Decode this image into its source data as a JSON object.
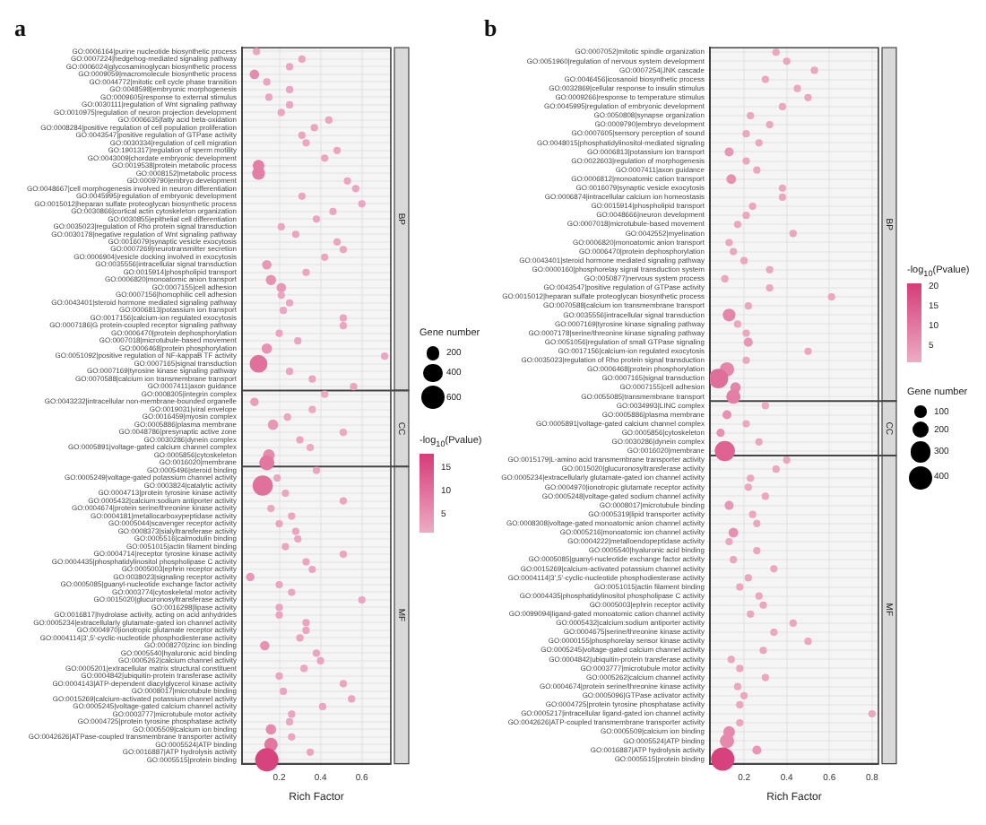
{
  "chart_data": [
    {
      "type": "bubble",
      "orientation": "horizontal",
      "title": "a",
      "xlabel": "Rich Factor",
      "grid": true,
      "xlim": [
        0.02,
        0.74
      ],
      "xticks": [
        0.2,
        0.4,
        0.6
      ],
      "legend_title": "Gene number",
      "clabel": "-log$_{10}$(Pvalue)",
      "clim": [
        1,
        18
      ],
      "cticks": [
        5,
        10,
        15
      ],
      "size_legend": [
        200,
        400,
        600
      ],
      "categories": [
        "GO:0006164|purine nucleotide biosynthetic process",
        "GO:0007224|hedgehog-mediated signaling pathway",
        "GO:0006024|glycosaminoglycan biosynthetic process",
        "GO:0009059|macromolecule biosynthetic process",
        "GO:0044772|mitotic cell cycle phase transition",
        "GO:0048598|embryonic morphogenesis",
        "GO:0009605|response to external stimulus",
        "GO:0030111|regulation of Wnt signaling pathway",
        "GO:0010975|regulation of neuron projection development",
        "GO:0006635|fatty acid beta-oxidation",
        "GO:0008284|positive regulation of cell population proliferation",
        "GO:0043547|positive regulation of GTPase activity",
        "GO:0030334|regulation of cell migration",
        "GO:1901317|regulation of sperm motility",
        "GO:0043009|chordate embryonic development",
        "GO:0019538|protein metabolic process",
        "GO:0008152|metabolic process",
        "GO:0009790|embryo development",
        "GO:0048667|cell morphogenesis involved in neuron differentiation",
        "GO:0045995|regulation of embryonic development",
        "GO:0015012|heparan sulfate proteoglycan biosynthetic process",
        "GO:0030866|cortical actin cytoskeleton organization",
        "GO:0030855|epithelial cell differentiation",
        "GO:0035023|regulation of Rho protein signal transduction",
        "GO:0030178|negative regulation of Wnt signaling pathway",
        "GO:0016079|synaptic vesicle exocytosis",
        "GO:0007269|neurotransmitter secretion",
        "GO:0006904|vesicle docking involved in exocytosis",
        "GO:0035556|intracellular signal transduction",
        "GO:0015914|phospholipid transport",
        "GO:0006820|monoatomic anion transport",
        "GO:0007155|cell adhesion",
        "GO:0007156|homophilic cell adhesion",
        "GO:0043401|steroid hormone mediated signaling pathway",
        "GO:0006813|potassium ion transport",
        "GO:0017156|calcium-ion regulated exocytosis",
        "GO:0007186|G protein-coupled receptor signaling pathway",
        "GO:0006470|protein dephosphorylation",
        "GO:0007018|microtubule-based movement",
        "GO:0006468|protein phosphorylation",
        "GO:0051092|positive regulation of NF-kappaB TF activity",
        "GO:0007165|signal transduction",
        "GO:0007169|tyrosine kinase signaling pathway",
        "GO:0070588|calcium ion transmembrane transport",
        "GO:0007411|axon guidance",
        "GO:0008305|integrin complex",
        "GO:0043232|intracellular non-membrane-bounded organelle",
        "GO:0019031|viral envelope",
        "GO:0016459|myosin complex",
        "GO:0005886|plasma membrane",
        "GO:0048786|presynaptic active zone",
        "GO:0030286|dynein complex",
        "GO:0005891|voltage-gated calcium channel complex",
        "GO:0005856|cytoskeleton",
        "GO:0016020|membrane",
        "GO:0005496|steroid binding",
        "GO:0005249|voltage-gated potassium channel activity",
        "GO:0003824|catalytic activity",
        "GO:0004713|protein tyrosine kinase activity",
        "GO:0005432|calcium:sodium antiporter activity",
        "GO:0004674|protein serine/threonine kinase activity",
        "GO:0004181|metallocarboxypeptidase activity",
        "GO:0005044|scavenger receptor activity",
        "GO:0008373|sialyltransferase activity",
        "GO:0005516|calmodulin binding",
        "GO:0051015|actin filament binding",
        "GO:0004714|receptor tyrosine kinase activity",
        "GO:0004435|phosphatidylinositol phospholipase C activity",
        "GO:0005003|ephrin receptor activity",
        "GO:0038023|signaling receptor activity",
        "GO:0005085|guanyl-nucleotide exchange factor activity",
        "GO:0003774|cytoskeletal motor activity",
        "GO:0015020|glucuronosyltransferase activity",
        "GO:0016298|lipase activity",
        "GO:0016817|hydrolase activity, acting on acid anhydrides",
        "GO:0005234|extracellularly glutamate-gated ion channel activity",
        "GO:0004970|ionotropic glutamate receptor activity",
        "GO:0004114|3',5'-cyclic-nucleotide phosphodiesterase activity",
        "GO:0008270|zinc ion binding",
        "GO:0005540|hyaluronic acid binding",
        "GO:0005262|calcium channel activity",
        "GO:0005201|extracellular matrix structural constituent",
        "GO:0004842|ubiquitin-protein transferase activity",
        "GO:0004143|ATP-dependent diacylglycerol kinase activity",
        "GO:0008017|microtubule binding",
        "GO:0015269|calcium-activated potassium channel activity",
        "GO:0005245|voltage-gated calcium channel activity",
        "GO:0003777|microtubule motor activity",
        "GO:0004725|protein tyrosine phosphatase activity",
        "GO:0005509|calcium ion binding",
        "GO:0042626|ATPase-coupled transmembrane transporter activity",
        "GO:0005524|ATP binding",
        "GO:0016887|ATP hydrolysis activity",
        "GO:0005515|protein binding"
      ],
      "values": [
        0.09,
        0.31,
        0.25,
        0.08,
        0.14,
        0.25,
        0.15,
        0.25,
        0.21,
        0.44,
        0.37,
        0.31,
        0.33,
        0.48,
        0.42,
        0.1,
        0.1,
        0.53,
        0.57,
        0.31,
        0.6,
        0.46,
        0.38,
        0.21,
        0.28,
        0.48,
        0.51,
        0.42,
        0.14,
        0.33,
        0.16,
        0.21,
        0.21,
        0.25,
        0.22,
        0.51,
        0.51,
        0.2,
        0.29,
        0.14,
        0.71,
        0.1,
        0.25,
        0.36,
        0.56,
        0.42,
        0.08,
        0.36,
        0.24,
        0.17,
        0.51,
        0.3,
        0.35,
        0.15,
        0.14,
        0.38,
        0.19,
        0.12,
        0.23,
        0.51,
        0.16,
        0.26,
        0.2,
        0.28,
        0.29,
        0.23,
        0.51,
        0.33,
        0.36,
        0.06,
        0.2,
        0.26,
        0.6,
        0.2,
        0.2,
        0.33,
        0.33,
        0.3,
        0.13,
        0.38,
        0.4,
        0.32,
        0.2,
        0.51,
        0.22,
        0.55,
        0.41,
        0.26,
        0.25,
        0.16,
        0.26,
        0.16,
        0.35,
        0.14
      ],
      "sizes": [
        60,
        60,
        60,
        100,
        60,
        60,
        60,
        60,
        60,
        60,
        60,
        60,
        60,
        60,
        60,
        150,
        180,
        60,
        60,
        60,
        60,
        60,
        60,
        60,
        60,
        60,
        60,
        60,
        100,
        60,
        120,
        100,
        60,
        60,
        60,
        60,
        60,
        60,
        60,
        120,
        60,
        350,
        60,
        60,
        60,
        60,
        80,
        60,
        60,
        120,
        60,
        60,
        60,
        150,
        250,
        60,
        60,
        450,
        60,
        60,
        60,
        60,
        60,
        60,
        60,
        60,
        60,
        60,
        60,
        80,
        60,
        60,
        60,
        60,
        60,
        60,
        60,
        60,
        100,
        60,
        60,
        60,
        60,
        60,
        60,
        60,
        60,
        60,
        60,
        120,
        60,
        200,
        60,
        600
      ],
      "cvalues": [
        2,
        2,
        2,
        6,
        2,
        2,
        2,
        2,
        2,
        2,
        2,
        2,
        2,
        2,
        2,
        8,
        8,
        2,
        2,
        2,
        2,
        2,
        2,
        2,
        2,
        2,
        2,
        2,
        4,
        2,
        5,
        4,
        2,
        2,
        2,
        2,
        2,
        2,
        2,
        5,
        2,
        10,
        2,
        2,
        2,
        1.5,
        3,
        1.5,
        2,
        4,
        1.5,
        2,
        1.5,
        6,
        9,
        2,
        2,
        10,
        2,
        2,
        2,
        2,
        2,
        2,
        2,
        2,
        2,
        2,
        2,
        4,
        2,
        2,
        2,
        2,
        2,
        2,
        2,
        2,
        5,
        2,
        2,
        2,
        2,
        2,
        2,
        2,
        2,
        2,
        2,
        6,
        2,
        9,
        2,
        17
      ],
      "bands": [
        {
          "axis": "y",
          "from": "GO:0006164|purine nucleotide biosynthetic process",
          "to": "GO:0007411|axon guidance",
          "label": "BP"
        },
        {
          "axis": "y",
          "from": "GO:0008305|integrin complex",
          "to": "GO:0016020|membrane",
          "label": "CC"
        },
        {
          "axis": "y",
          "from": "GO:0005496|steroid binding",
          "to": "GO:0005515|protein binding",
          "label": "MF"
        }
      ]
    },
    {
      "type": "bubble",
      "orientation": "horizontal",
      "title": "b",
      "xlabel": "Rich Factor",
      "grid": true,
      "xlim": [
        0.04,
        0.83
      ],
      "xticks": [
        0.2,
        0.4,
        0.6,
        0.8
      ],
      "legend_title": "Gene number",
      "clabel": "-log$_{10}$(Pvalue)",
      "clim": [
        1,
        21
      ],
      "cticks": [
        5,
        10,
        15,
        20
      ],
      "size_legend": [
        100,
        200,
        300,
        400
      ],
      "categories": [
        "GO:0007052|mitotic spindle organization",
        "GO:0051960|regulation of nervous system development",
        "GO:0007254|JNK cascade",
        "GO:0046456|icosanoid biosynthetic process",
        "GO:0032869|cellular response to insulin stimulus",
        "GO:0009266|response to temperature stimulus",
        "GO:0045995|regulation of embryonic development",
        "GO:0050808|synapse organization",
        "GO:0009790|embryo development",
        "GO:0007605|sensory perception of sound",
        "GO:0048015|phosphatidylinositol-mediated signaling",
        "GO:0006813|potassium ion transport",
        "GO:0022603|regulation of morphogenesis",
        "GO:0007411|axon guidance",
        "GO:0006812|monoatomic cation transport",
        "GO:0016079|synaptic vesicle exocytosis",
        "GO:0006874|intracellular calcium ion homeostasis",
        "GO:0015914|phospholipid transport",
        "GO:0048666|neuron development",
        "GO:0007018|microtubule-based movement",
        "GO:0042552|myelination",
        "GO:0006820|monoatomic anion transport",
        "GO:0006470|protein dephosphorylation",
        "GO:0043401|steroid hormone mediated signaling pathway",
        "GO:0000160|phosphorelay signal transduction system",
        "GO:0050877|nervous system process",
        "GO:0043547|positive regulation of GTPase activity",
        "GO:0015012|heparan sulfate proteoglycan biosynthetic process",
        "GO:0070588|calcium ion transmembrane transport",
        "GO:0035556|intracellular signal transduction",
        "GO:0007169|tyrosine kinase signaling pathway",
        "GO:0007178|serine/threonine kinase signaling pathway",
        "GO:0051056|regulation of small GTPase signaling",
        "GO:0017156|calcium-ion regulated exocytosis",
        "GO:0035023|regulation of Rho protein signal transduction",
        "GO:0006468|protein phosphorylation",
        "GO:0007165|signal transduction",
        "GO:0007155|cell adhesion",
        "GO:0055085|transmembrane transport",
        "GO:0034993|LINC complex",
        "GO:0005886|plasma membrane",
        "GO:0005891|voltage-gated calcium channel complex",
        "GO:0005856|cytoskeleton",
        "GO:0030286|dynein complex",
        "GO:0016020|membrane",
        "GO:0015179|L-amino acid transmembrane transporter activity",
        "GO:0015020|glucuronosyltransferase activity",
        "GO:0005234|extracellularly glutamate-gated ion channel activity",
        "GO:0004970|ionotropic glutamate receptor activity",
        "GO:0005248|voltage-gated sodium channel activity",
        "GO:0008017|microtubule binding",
        "GO:0005319|lipid transporter activity",
        "GO:0008308|voltage-gated monoatomic anion channel activity",
        "GO:0005216|monoatomic ion channel activity",
        "GO:0004222|metalloendopeptidase activity",
        "GO:0005540|hyaluronic acid binding",
        "GO:0005085|guanyl-nucleotide exchange factor activity",
        "GO:0015269|calcium-activated potassium channel activity",
        "GO:0004114|3',5'-cyclic-nucleotide phosphodiesterase activity",
        "GO:0051015|actin filament binding",
        "GO:0004435|phosphatidylinositol phospholipase C activity",
        "GO:0005003|ephrin receptor activity",
        "GO:0099094|ligand-gated monoatomic cation channel activity",
        "GO:0005432|calcium:sodium antiporter activity",
        "GO:0004675|serine/threonine kinase activity",
        "GO:0000155|phosphorelay sensor kinase activity",
        "GO:0005245|voltage-gated calcium channel activity",
        "GO:0004842|ubiquitin-protein transferase activity",
        "GO:0003777|microtubule motor activity",
        "GO:0005262|calcium channel activity",
        "GO:0004674|protein serine/threonine kinase activity",
        "GO:0005096|GTPase activator activity",
        "GO:0004725|protein tyrosine phosphatase activity",
        "GO:0005217|intracellular ligand-gated ion channel activity",
        "GO:0042626|ATP-coupled transmembrane transporter activity",
        "GO:0005509|calcium ion binding",
        "GO:0005524|ATP binding",
        "GO:0016887|ATP hydrolysis activity",
        "GO:0005515|protein binding"
      ],
      "values": [
        0.35,
        0.4,
        0.53,
        0.3,
        0.45,
        0.5,
        0.38,
        0.23,
        0.32,
        0.21,
        0.27,
        0.13,
        0.21,
        0.26,
        0.14,
        0.38,
        0.38,
        0.24,
        0.21,
        0.17,
        0.43,
        0.13,
        0.15,
        0.2,
        0.32,
        0.11,
        0.32,
        0.61,
        0.22,
        0.13,
        0.17,
        0.21,
        0.22,
        0.5,
        0.21,
        0.12,
        0.08,
        0.16,
        0.15,
        0.3,
        0.12,
        0.21,
        0.09,
        0.27,
        0.11,
        0.4,
        0.35,
        0.23,
        0.22,
        0.3,
        0.13,
        0.24,
        0.26,
        0.15,
        0.13,
        0.26,
        0.15,
        0.34,
        0.22,
        0.18,
        0.27,
        0.29,
        0.23,
        0.43,
        0.34,
        0.5,
        0.29,
        0.14,
        0.18,
        0.3,
        0.17,
        0.2,
        0.18,
        0.8,
        0.18,
        0.13,
        0.12,
        0.26,
        0.1
      ],
      "sizes": [
        40,
        40,
        40,
        40,
        40,
        40,
        40,
        40,
        40,
        40,
        40,
        60,
        40,
        40,
        70,
        40,
        40,
        40,
        40,
        40,
        40,
        40,
        40,
        40,
        40,
        40,
        40,
        40,
        40,
        120,
        40,
        40,
        60,
        40,
        40,
        150,
        280,
        80,
        150,
        40,
        60,
        40,
        50,
        40,
        300,
        40,
        40,
        40,
        40,
        40,
        60,
        40,
        40,
        70,
        40,
        40,
        40,
        40,
        40,
        40,
        40,
        40,
        40,
        40,
        40,
        40,
        40,
        40,
        40,
        40,
        40,
        40,
        40,
        40,
        40,
        100,
        150,
        60,
        400
      ],
      "cvalues": [
        2,
        2,
        2,
        2,
        2,
        2,
        2,
        2,
        2,
        2,
        2,
        5,
        2,
        2,
        6,
        2,
        2,
        2,
        2,
        2,
        2,
        2,
        2,
        2,
        2,
        2,
        2,
        2,
        2,
        8,
        2,
        2,
        5,
        2,
        2,
        8,
        12,
        8,
        9,
        1.5,
        6,
        2,
        6,
        2,
        14,
        2,
        2,
        2,
        2,
        2,
        5,
        2,
        2,
        6,
        2,
        2,
        2,
        2,
        2,
        2,
        2,
        2,
        2,
        2,
        2,
        2,
        2,
        2,
        2,
        2,
        2,
        2,
        2,
        2,
        2,
        7,
        7,
        5,
        20
      ],
      "bands": [
        {
          "axis": "y",
          "from": "GO:0007052|mitotic spindle organization",
          "to": "GO:0055085|transmembrane transport",
          "label": "BP"
        },
        {
          "axis": "y",
          "from": "GO:0034993|LINC complex",
          "to": "GO:0016020|membrane",
          "label": "CC"
        },
        {
          "axis": "y",
          "from": "GO:0015179|L-amino acid transmembrane transporter activity",
          "to": "GO:0005515|protein binding",
          "label": "MF"
        }
      ]
    }
  ]
}
